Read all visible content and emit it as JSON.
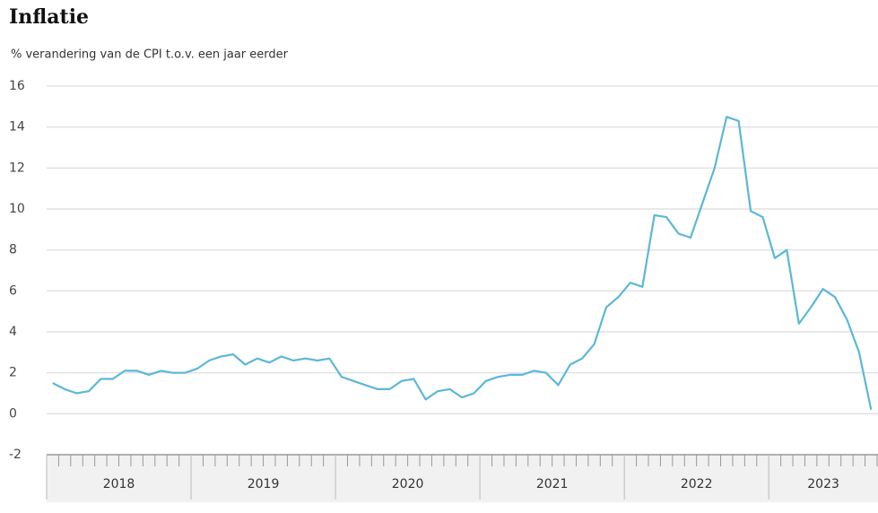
{
  "chart_data": {
    "type": "line",
    "title": "Inflatie",
    "subtitle": "% verandering van de CPI t.o.v. een jaar eerder",
    "year_labels": [
      "2018",
      "2019",
      "2020",
      "2021",
      "2022",
      "2023"
    ],
    "color": "#5bb8d6",
    "values": [
      1.5,
      1.2,
      1.0,
      1.1,
      1.7,
      1.7,
      2.1,
      2.1,
      1.9,
      2.1,
      2.0,
      2.0,
      2.2,
      2.6,
      2.8,
      2.9,
      2.4,
      2.7,
      2.5,
      2.8,
      2.6,
      2.7,
      2.6,
      2.7,
      1.8,
      1.6,
      1.4,
      1.2,
      1.2,
      1.6,
      1.7,
      0.7,
      1.1,
      1.2,
      0.8,
      1.0,
      1.6,
      1.8,
      1.9,
      1.9,
      2.1,
      2.0,
      1.4,
      2.4,
      2.7,
      3.4,
      5.2,
      5.7,
      6.4,
      6.2,
      9.7,
      9.6,
      8.8,
      8.6,
      10.3,
      12.0,
      14.5,
      14.3,
      9.9,
      9.6,
      7.6,
      8.0,
      4.4,
      5.2,
      6.1,
      5.7,
      4.6,
      3.0,
      0.2
    ],
    "ylim": [
      -2,
      16
    ],
    "yticks": [
      -2,
      0,
      2,
      4,
      6,
      8,
      10,
      12,
      14,
      16
    ],
    "grid": true
  }
}
